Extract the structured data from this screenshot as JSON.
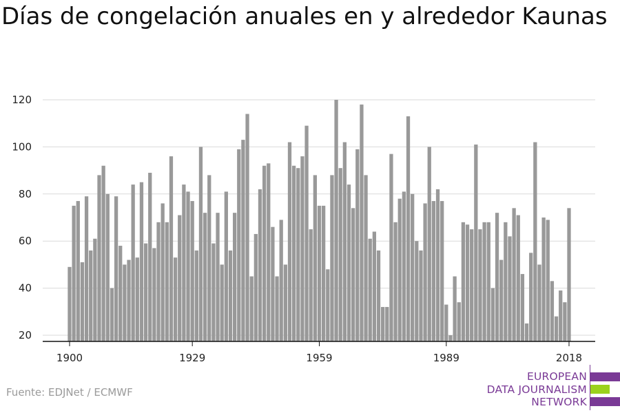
{
  "chart_data": {
    "type": "bar",
    "title": "Días de congelación anuales en y alrededor Kaunas",
    "xlabel": "",
    "ylabel": "",
    "x": [
      1900,
      1901,
      1902,
      1903,
      1904,
      1905,
      1906,
      1907,
      1908,
      1909,
      1910,
      1911,
      1912,
      1913,
      1914,
      1915,
      1916,
      1917,
      1918,
      1919,
      1920,
      1921,
      1922,
      1923,
      1924,
      1925,
      1926,
      1927,
      1928,
      1929,
      1930,
      1931,
      1932,
      1933,
      1934,
      1935,
      1936,
      1937,
      1938,
      1939,
      1940,
      1941,
      1942,
      1943,
      1944,
      1945,
      1946,
      1947,
      1948,
      1949,
      1950,
      1951,
      1952,
      1953,
      1954,
      1955,
      1956,
      1957,
      1958,
      1959,
      1960,
      1961,
      1962,
      1963,
      1964,
      1965,
      1966,
      1967,
      1968,
      1969,
      1970,
      1971,
      1972,
      1973,
      1974,
      1975,
      1976,
      1977,
      1978,
      1979,
      1980,
      1981,
      1982,
      1983,
      1984,
      1985,
      1986,
      1987,
      1988,
      1989,
      1990,
      1991,
      1992,
      1993,
      1994,
      1995,
      1996,
      1997,
      1998,
      1999,
      2000,
      2001,
      2002,
      2003,
      2004,
      2005,
      2006,
      2007,
      2008,
      2009,
      2010,
      2011,
      2012,
      2013,
      2014,
      2015,
      2016,
      2017,
      2018
    ],
    "values": [
      49,
      75,
      77,
      51,
      79,
      56,
      61,
      88,
      92,
      80,
      40,
      79,
      58,
      50,
      52,
      84,
      53,
      85,
      59,
      89,
      57,
      68,
      76,
      68,
      96,
      53,
      71,
      84,
      81,
      77,
      56,
      100,
      72,
      88,
      59,
      72,
      50,
      81,
      56,
      72,
      99,
      103,
      114,
      45,
      63,
      82,
      92,
      93,
      66,
      45,
      69,
      50,
      102,
      92,
      91,
      96,
      109,
      65,
      88,
      75,
      75,
      48,
      88,
      120,
      91,
      102,
      84,
      74,
      99,
      118,
      88,
      61,
      64,
      56,
      32,
      32,
      97,
      68,
      78,
      81,
      113,
      80,
      60,
      56,
      76,
      100,
      77,
      82,
      77,
      33,
      20,
      45,
      34,
      68,
      67,
      65,
      101,
      65,
      68,
      68,
      40,
      72,
      52,
      68,
      62,
      74,
      71,
      46,
      25,
      55,
      102,
      50,
      70,
      69,
      43,
      28,
      39,
      34,
      74
    ],
    "x_ticks": [
      1900,
      1929,
      1959,
      1989,
      2018
    ],
    "y_ticks": [
      20,
      40,
      60,
      80,
      100,
      120
    ],
    "ylim": [
      20,
      120
    ],
    "grid": true,
    "bar_color": "#999999",
    "grid_color": "#d9d9d9"
  },
  "source": "Fuente: EDJNet / ECMWF",
  "logo": {
    "lines": [
      "EUROPEAN",
      "DATA JOURNALISM",
      "NETWORK"
    ],
    "purple": "#7a3a96",
    "green": "#9bd21d"
  }
}
